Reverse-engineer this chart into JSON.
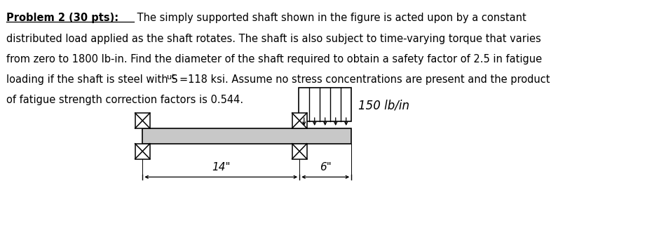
{
  "title_text": "Problem 2 (30 pts):",
  "line1_rest": " The simply supported shaft shown in the figure is acted upon by a constant",
  "line2": "distributed load applied as the shaft rotates. The shaft is also subject to time-varying torque that varies",
  "line3": "from zero to 1800 lb-in. Find the diameter of the shaft required to obtain a safety factor of 2.5 in fatigue",
  "line4a": "loading if the shaft is steel with S",
  "line4_sub": "ut",
  "line4b": "=118 ksi. Assume no stress concentrations are present and the product",
  "line5": "of fatigue strength correction factors is 0.544.",
  "load_label": "150 lb/in",
  "dim1": "14\"",
  "dim2": "6\"",
  "bg_color": "#ffffff",
  "text_color": "#000000"
}
